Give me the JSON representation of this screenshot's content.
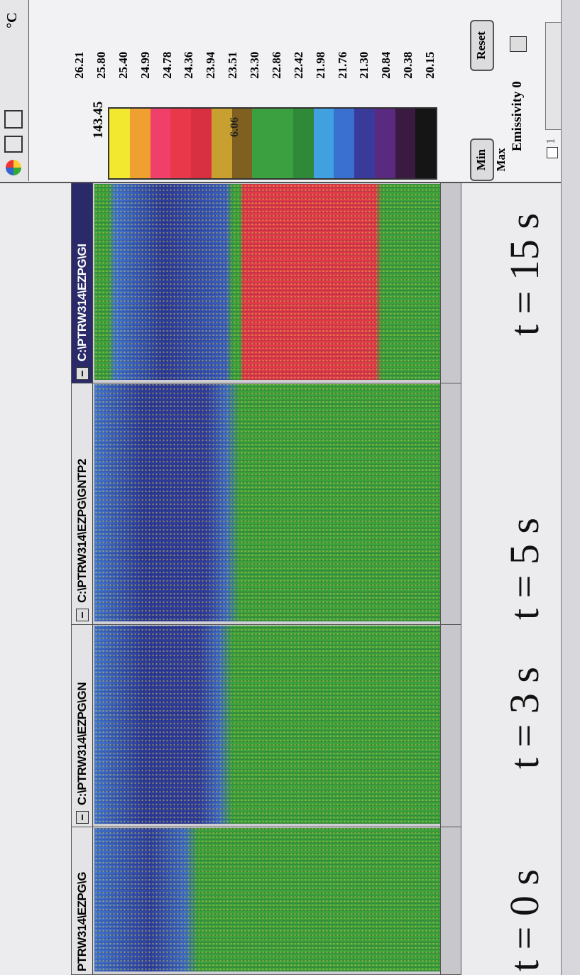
{
  "windows": [
    {
      "title": "PTRW314\\EZPG\\G"
    },
    {
      "title": "C:\\PTRW314\\EZPG\\GN"
    },
    {
      "title": "C:\\PTRW314\\EZPG\\GNTP2"
    },
    {
      "title": "C:\\PTRW314\\EZPG\\GI"
    }
  ],
  "time_labels": [
    "t = 0 s",
    "t = 3 s",
    "t = 5 s",
    "t = 15 s"
  ],
  "palette": {
    "unit": "°C",
    "max": "143.45",
    "marker": "6.06",
    "scale": [
      "26.21",
      "25.80",
      "25.40",
      "24.99",
      "24.78",
      "24.36",
      "23.94",
      "23.51",
      "23.30",
      "22.86",
      "22.42",
      "21.98",
      "21.76",
      "21.30",
      "20.84",
      "20.38",
      "20.15"
    ],
    "min_max": "Min Max",
    "reset": "Reset",
    "emissivity": "Emissivity 0",
    "checkbox": "1"
  }
}
